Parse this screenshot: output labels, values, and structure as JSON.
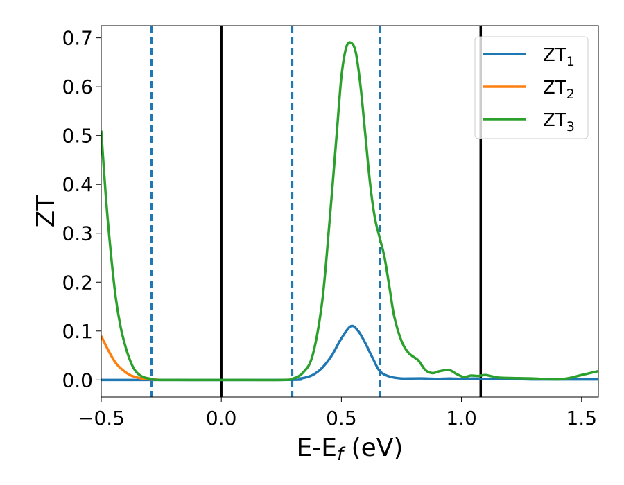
{
  "chart_data": {
    "type": "line",
    "xlabel": "E-E",
    "xlabel_sub": "f",
    "xlabel_unit": " (eV)",
    "ylabel": "ZT",
    "xlim": [
      -0.5,
      1.57
    ],
    "ylim": [
      -0.035,
      0.725
    ],
    "xticks": [
      -0.5,
      0.0,
      0.5,
      1.0,
      1.5
    ],
    "xtick_labels": [
      "−0.5",
      "0.0",
      "0.5",
      "1.0",
      "1.5"
    ],
    "yticks": [
      0.0,
      0.1,
      0.2,
      0.3,
      0.4,
      0.5,
      0.6,
      0.7
    ],
    "ytick_labels": [
      "0.0",
      "0.1",
      "0.2",
      "0.3",
      "0.4",
      "0.5",
      "0.6",
      "0.7"
    ],
    "grid": false,
    "legend_position": "top-right",
    "vlines": [
      {
        "x": -0.29,
        "style": "dashed",
        "color": "#1f77b4"
      },
      {
        "x": 0.0,
        "style": "solid",
        "color": "#000000"
      },
      {
        "x": 0.295,
        "style": "dashed",
        "color": "#1f77b4"
      },
      {
        "x": 0.66,
        "style": "dashed",
        "color": "#1f77b4"
      },
      {
        "x": 1.08,
        "style": "solid",
        "color": "#000000"
      }
    ],
    "series": [
      {
        "name": "ZT",
        "sub": "1",
        "color": "#1f77b4",
        "x": [
          -0.5,
          0.25,
          0.33,
          0.38,
          0.42,
          0.46,
          0.5,
          0.54,
          0.57,
          0.6,
          0.63,
          0.66,
          0.7,
          0.75,
          0.8,
          0.85,
          0.9,
          0.95,
          1.0,
          1.05,
          1.1,
          1.2,
          1.3,
          1.4,
          1.57
        ],
        "y": [
          0.0,
          0.0,
          0.003,
          0.01,
          0.025,
          0.05,
          0.085,
          0.11,
          0.1,
          0.075,
          0.045,
          0.018,
          0.007,
          0.003,
          0.003,
          0.003,
          0.002,
          0.003,
          0.002,
          0.003,
          0.002,
          0.002,
          0.001,
          0.001,
          0.001
        ]
      },
      {
        "name": "ZT",
        "sub": "2",
        "color": "#ff7f0e",
        "x": [
          -0.5,
          -0.47,
          -0.44,
          -0.41,
          -0.38,
          -0.35,
          -0.32,
          -0.29,
          -0.25
        ],
        "y": [
          0.09,
          0.06,
          0.035,
          0.02,
          0.01,
          0.005,
          0.002,
          0.001,
          0.0
        ]
      },
      {
        "name": "ZT",
        "sub": "3",
        "color": "#2ca02c",
        "x": [
          -0.5,
          -0.48,
          -0.46,
          -0.44,
          -0.42,
          -0.4,
          -0.38,
          -0.36,
          -0.34,
          -0.32,
          -0.29,
          -0.25,
          0.0,
          0.25,
          0.3,
          0.34,
          0.38,
          0.42,
          0.45,
          0.48,
          0.5,
          0.52,
          0.54,
          0.56,
          0.58,
          0.6,
          0.62,
          0.64,
          0.66,
          0.68,
          0.7,
          0.72,
          0.75,
          0.78,
          0.82,
          0.85,
          0.88,
          0.91,
          0.95,
          0.98,
          1.01,
          1.04,
          1.07,
          1.1,
          1.15,
          1.2,
          1.3,
          1.4,
          1.45,
          1.5,
          1.57
        ],
        "y": [
          0.51,
          0.37,
          0.26,
          0.17,
          0.11,
          0.07,
          0.04,
          0.02,
          0.01,
          0.005,
          0.002,
          0.0,
          0.0,
          0.0,
          0.003,
          0.015,
          0.05,
          0.16,
          0.32,
          0.5,
          0.62,
          0.68,
          0.69,
          0.67,
          0.6,
          0.5,
          0.4,
          0.33,
          0.29,
          0.25,
          0.19,
          0.13,
          0.08,
          0.055,
          0.04,
          0.02,
          0.014,
          0.018,
          0.02,
          0.012,
          0.006,
          0.009,
          0.008,
          0.01,
          0.005,
          0.004,
          0.003,
          0.001,
          0.004,
          0.01,
          0.018
        ]
      }
    ]
  }
}
